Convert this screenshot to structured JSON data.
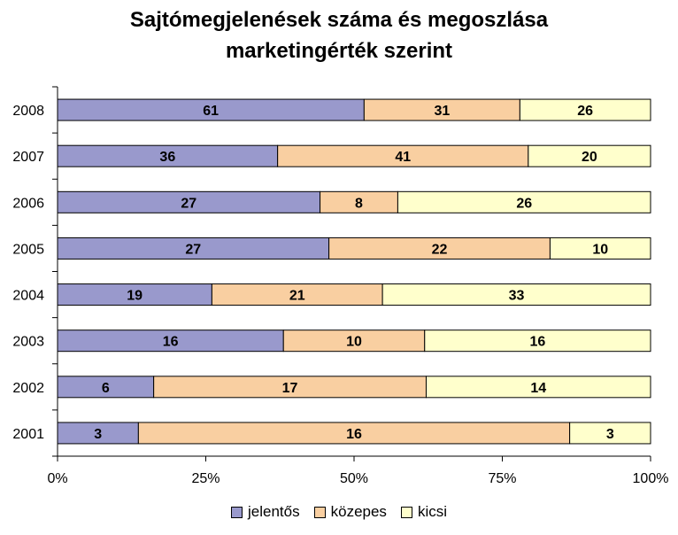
{
  "chart_data": {
    "type": "bar",
    "orientation": "horizontal",
    "stacked": "percent",
    "title_lines": [
      "Sajtómegjelenések száma és megoszlása",
      "marketingérték szerint"
    ],
    "categories": [
      "2008",
      "2007",
      "2006",
      "2005",
      "2004",
      "2003",
      "2002",
      "2001"
    ],
    "series": [
      {
        "name": "jelentős",
        "color": "#9999cc",
        "values": [
          61,
          36,
          27,
          27,
          19,
          16,
          6,
          3
        ]
      },
      {
        "name": "közepes",
        "color": "#f9cfa1",
        "values": [
          31,
          41,
          8,
          22,
          21,
          10,
          17,
          16
        ]
      },
      {
        "name": "kicsi",
        "color": "#ffffcc",
        "values": [
          26,
          20,
          26,
          10,
          33,
          16,
          14,
          3
        ]
      }
    ],
    "x_ticks": [
      "0%",
      "25%",
      "50%",
      "75%",
      "100%"
    ],
    "xlim": [
      0,
      100
    ],
    "legend_position": "bottom",
    "grid": false
  }
}
